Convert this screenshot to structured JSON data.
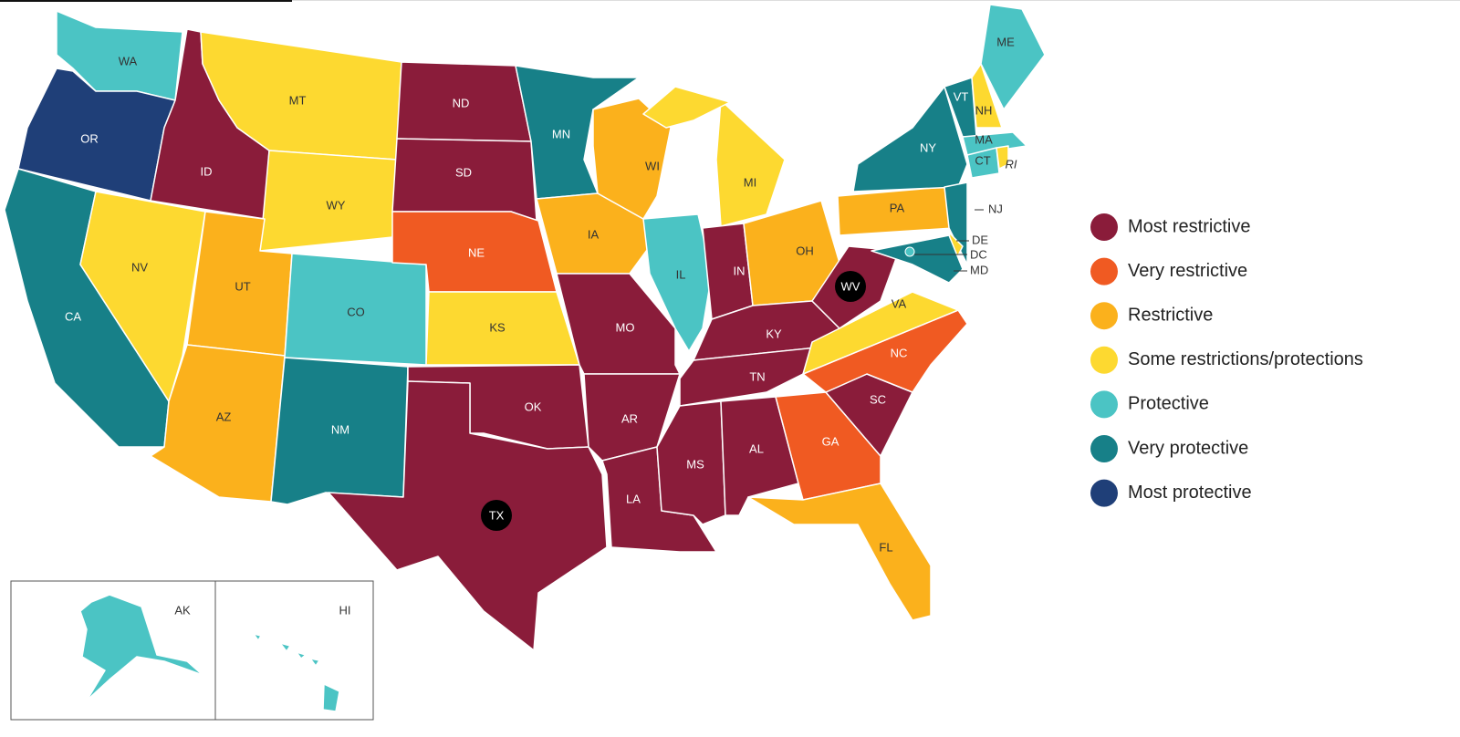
{
  "legend": [
    {
      "name": "Most restrictive",
      "color": "#8a1c3a"
    },
    {
      "name": "Very restrictive",
      "color": "#f05a22"
    },
    {
      "name": "Restrictive",
      "color": "#fbb11c"
    },
    {
      "name": "Some restrictions/protections",
      "color": "#fdd930"
    },
    {
      "name": "Protective",
      "color": "#4bc4c4"
    },
    {
      "name": "Very protective",
      "color": "#178088"
    },
    {
      "name": "Most protective",
      "color": "#1f3f78"
    }
  ],
  "states": [
    {
      "label": "WA",
      "level": "Protective"
    },
    {
      "label": "OR",
      "level": "Most protective"
    },
    {
      "label": "CA",
      "level": "Very protective"
    },
    {
      "label": "ID",
      "level": "Most restrictive"
    },
    {
      "label": "NV",
      "level": "Some restrictions/protections"
    },
    {
      "label": "MT",
      "level": "Some restrictions/protections"
    },
    {
      "label": "WY",
      "level": "Some restrictions/protections"
    },
    {
      "label": "UT",
      "level": "Restrictive"
    },
    {
      "label": "AZ",
      "level": "Restrictive"
    },
    {
      "label": "CO",
      "level": "Protective"
    },
    {
      "label": "NM",
      "level": "Very protective"
    },
    {
      "label": "ND",
      "level": "Most restrictive"
    },
    {
      "label": "SD",
      "level": "Most restrictive"
    },
    {
      "label": "NE",
      "level": "Very restrictive"
    },
    {
      "label": "KS",
      "level": "Some restrictions/protections"
    },
    {
      "label": "OK",
      "level": "Most restrictive"
    },
    {
      "label": "TX",
      "level": "Most restrictive"
    },
    {
      "label": "MN",
      "level": "Very protective"
    },
    {
      "label": "IA",
      "level": "Restrictive"
    },
    {
      "label": "MO",
      "level": "Most restrictive"
    },
    {
      "label": "AR",
      "level": "Most restrictive"
    },
    {
      "label": "LA",
      "level": "Most restrictive"
    },
    {
      "label": "WI",
      "level": "Restrictive"
    },
    {
      "label": "IL",
      "level": "Protective"
    },
    {
      "label": "MI",
      "level": "Some restrictions/protections"
    },
    {
      "label": "IN",
      "level": "Most restrictive"
    },
    {
      "label": "OH",
      "level": "Restrictive"
    },
    {
      "label": "KY",
      "level": "Most restrictive"
    },
    {
      "label": "TN",
      "level": "Most restrictive"
    },
    {
      "label": "MS",
      "level": "Most restrictive"
    },
    {
      "label": "AL",
      "level": "Most restrictive"
    },
    {
      "label": "GA",
      "level": "Very restrictive"
    },
    {
      "label": "FL",
      "level": "Restrictive"
    },
    {
      "label": "SC",
      "level": "Most restrictive"
    },
    {
      "label": "NC",
      "level": "Very restrictive"
    },
    {
      "label": "VA",
      "level": "Some restrictions/protections"
    },
    {
      "label": "WV",
      "level": "Most restrictive"
    },
    {
      "label": "PA",
      "level": "Restrictive"
    },
    {
      "label": "NY",
      "level": "Very protective"
    },
    {
      "label": "NJ",
      "level": "Very protective"
    },
    {
      "label": "DE",
      "level": "Some restrictions/protections"
    },
    {
      "label": "MD",
      "level": "Very protective"
    },
    {
      "label": "VT",
      "level": "Very protective"
    },
    {
      "label": "NH",
      "level": "Some restrictions/protections"
    },
    {
      "label": "ME",
      "level": "Protective"
    },
    {
      "label": "MA",
      "level": "Protective"
    },
    {
      "label": "CT",
      "level": "Protective"
    },
    {
      "label": "RI",
      "level": "Some restrictions/protections"
    },
    {
      "label": "DC",
      "level": "Protective"
    },
    {
      "label": "AK",
      "level": "Protective"
    },
    {
      "label": "HI",
      "level": "Protective"
    }
  ]
}
